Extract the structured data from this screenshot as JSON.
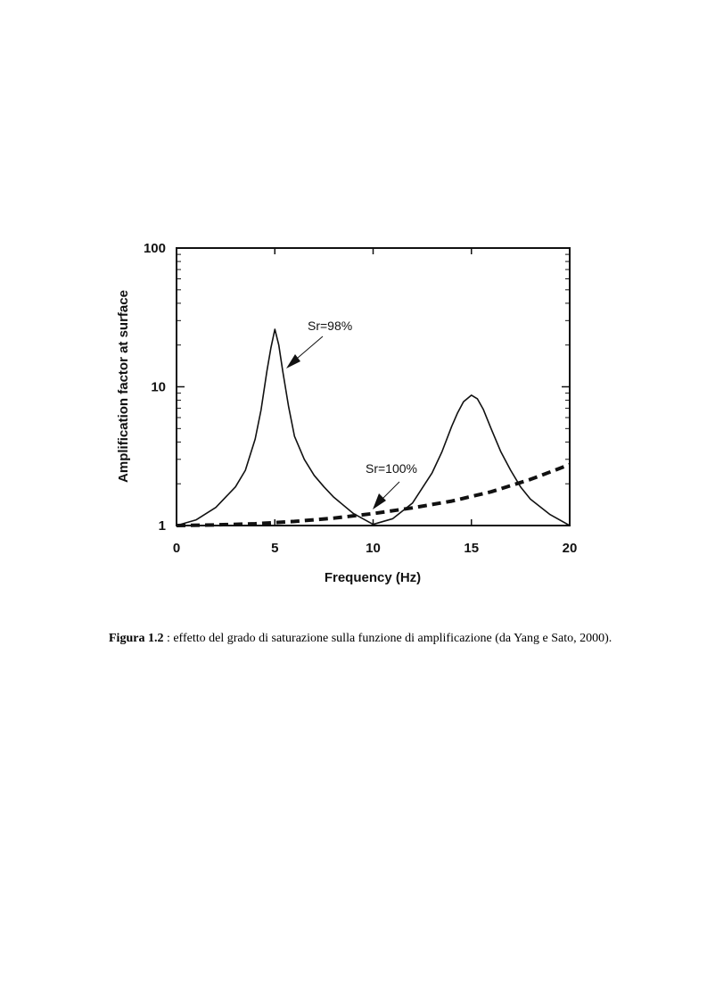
{
  "chart_data": {
    "type": "line",
    "xlabel": "Frequency (Hz)",
    "ylabel": "Amplification factor at surface",
    "xlim": [
      0,
      20
    ],
    "ylim": [
      1,
      100
    ],
    "yscale": "log",
    "x_ticks": [
      "0",
      "5",
      "10",
      "15",
      "20"
    ],
    "y_ticks": [
      "1",
      "10",
      "100"
    ],
    "grid": false,
    "series": [
      {
        "name": "Sr=98%",
        "style": "solid",
        "color": "#111111",
        "x": [
          0,
          1,
          2,
          3,
          3.5,
          4,
          4.3,
          4.6,
          4.8,
          5,
          5.2,
          5.4,
          5.7,
          6,
          6.5,
          7,
          7.5,
          8,
          9,
          10,
          11,
          12,
          13,
          13.5,
          14,
          14.3,
          14.6,
          15,
          15.3,
          15.6,
          16,
          16.5,
          17,
          17.5,
          18,
          19,
          20
        ],
        "y": [
          1.0,
          1.1,
          1.35,
          1.9,
          2.5,
          4.2,
          6.8,
          13,
          19,
          26,
          20,
          13,
          7.2,
          4.4,
          3.0,
          2.3,
          1.9,
          1.6,
          1.22,
          1.02,
          1.12,
          1.45,
          2.4,
          3.4,
          5.2,
          6.5,
          7.8,
          8.7,
          8.2,
          6.9,
          5.0,
          3.4,
          2.5,
          1.9,
          1.55,
          1.2,
          1.0
        ]
      },
      {
        "name": "Sr=100%",
        "style": "dashed",
        "color": "#111111",
        "x": [
          0,
          2,
          4,
          6,
          8,
          10,
          12,
          14,
          16,
          18,
          20
        ],
        "y": [
          1.0,
          1.01,
          1.03,
          1.07,
          1.13,
          1.22,
          1.34,
          1.5,
          1.75,
          2.15,
          2.75
        ]
      }
    ],
    "annotations": [
      {
        "text": "Sr=98%",
        "series": "Sr=98%"
      },
      {
        "text": "Sr=100%",
        "series": "Sr=100%"
      }
    ]
  },
  "caption": {
    "label": "Figura 1.2",
    "text": " : effetto del grado di saturazione sulla funzione di amplificazione (da Yang e Sato, 2000)."
  }
}
